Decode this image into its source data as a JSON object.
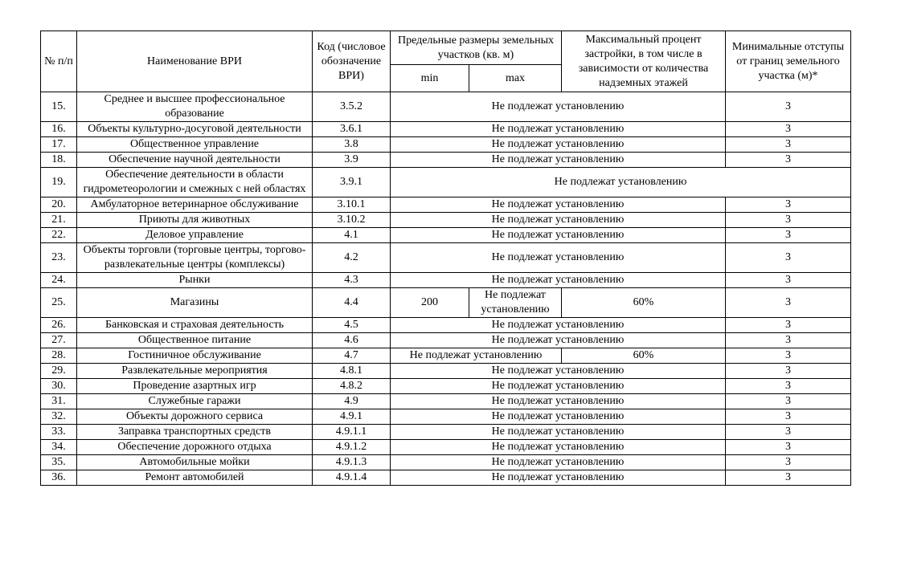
{
  "document": {
    "background": "#ffffff",
    "text_color": "#000000",
    "border_color": "#000000"
  },
  "table": {
    "header": {
      "num": "№ п/п",
      "name": "Наименование ВРИ",
      "code": "Код (числовое обозначение ВРИ)",
      "size_group": "Предельные размеры земельных участков (кв. м)",
      "min": "min",
      "max": "max",
      "percent": "Максимальный процент застройки, в том числе в зависимости от количества надземных этажей",
      "setback": "Минимальные отступы от границ земельного участка (м)*"
    },
    "rows": [
      {
        "num": "15.",
        "name": "Среднее и высшее профессиональное образование",
        "code": "3.5.2",
        "merge": "three",
        "value": "Не подлежат установлению",
        "setback": "3"
      },
      {
        "num": "16.",
        "name": "Объекты культурно-досуговой деятельности",
        "code": "3.6.1",
        "merge": "three",
        "value": "Не подлежат установлению",
        "setback": "3"
      },
      {
        "num": "17.",
        "name": "Общественное управление",
        "code": "3.8",
        "merge": "three",
        "value": "Не подлежат установлению",
        "setback": "3"
      },
      {
        "num": "18.",
        "name": "Обеспечение научной деятельности",
        "code": "3.9",
        "merge": "three",
        "value": "Не подлежат установлению",
        "setback": "3"
      },
      {
        "num": "19.",
        "name": "Обеспечение деятельности в области гидрометеорологии и смежных с ней областях",
        "code": "3.9.1",
        "merge": "four",
        "value": "Не подлежат установлению"
      },
      {
        "num": "20.",
        "name": "Амбулаторное ветеринарное обслуживание",
        "code": "3.10.1",
        "merge": "three",
        "value": "Не подлежат установлению",
        "setback": "3"
      },
      {
        "num": "21.",
        "name": "Приюты для животных",
        "code": "3.10.2",
        "merge": "three",
        "value": "Не подлежат установлению",
        "setback": "3"
      },
      {
        "num": "22.",
        "name": "Деловое управление",
        "code": "4.1",
        "merge": "three",
        "value": "Не подлежат установлению",
        "setback": "3"
      },
      {
        "num": "23.",
        "name": "Объекты торговли (торговые центры, торгово-развлекательные центры (комплексы)",
        "code": "4.2",
        "merge": "three",
        "value": "Не подлежат установлению",
        "setback": "3"
      },
      {
        "num": "24.",
        "name": "Рынки",
        "code": "4.3",
        "merge": "three",
        "value": "Не подлежат установлению",
        "setback": "3"
      },
      {
        "num": "25.",
        "name": "Магазины",
        "code": "4.4",
        "merge": "none",
        "min": "200",
        "max": "Не подлежат установлению",
        "percent": "60%",
        "setback": "3"
      },
      {
        "num": "26.",
        "name": "Банковская и страховая деятельность",
        "code": "4.5",
        "merge": "three",
        "value": "Не подлежат установлению",
        "setback": "3"
      },
      {
        "num": "27.",
        "name": "Общественное питание",
        "code": "4.6",
        "merge": "three",
        "value": "Не подлежат установлению",
        "setback": "3"
      },
      {
        "num": "28.",
        "name": "Гостиничное обслуживание",
        "code": "4.7",
        "merge": "two",
        "value": "Не подлежат установлению",
        "percent": "60%",
        "setback": "3"
      },
      {
        "num": "29.",
        "name": "Развлекательные мероприятия",
        "code": "4.8.1",
        "merge": "three",
        "value": "Не подлежат установлению",
        "setback": "3"
      },
      {
        "num": "30.",
        "name": "Проведение азартных игр",
        "code": "4.8.2",
        "merge": "three",
        "value": "Не подлежат установлению",
        "setback": "3"
      },
      {
        "num": "31.",
        "name": "Служебные гаражи",
        "code": "4.9",
        "merge": "three",
        "value": "Не подлежат установлению",
        "setback": "3"
      },
      {
        "num": "32.",
        "name": "Объекты дорожного сервиса",
        "code": "4.9.1",
        "merge": "three",
        "value": "Не подлежат установлению",
        "setback": "3"
      },
      {
        "num": "33.",
        "name": "Заправка транспортных средств",
        "code": "4.9.1.1",
        "merge": "three",
        "value": "Не подлежат установлению",
        "setback": "3"
      },
      {
        "num": "34.",
        "name": "Обеспечение дорожного отдыха",
        "code": "4.9.1.2",
        "merge": "three",
        "value": "Не подлежат установлению",
        "setback": "3"
      },
      {
        "num": "35.",
        "name": "Автомобильные мойки",
        "code": "4.9.1.3",
        "merge": "three",
        "value": "Не подлежат установлению",
        "setback": "3"
      },
      {
        "num": "36.",
        "name": "Ремонт автомобилей",
        "code": "4.9.1.4",
        "merge": "three",
        "value": "Не подлежат установлению",
        "setback": "3"
      }
    ]
  }
}
